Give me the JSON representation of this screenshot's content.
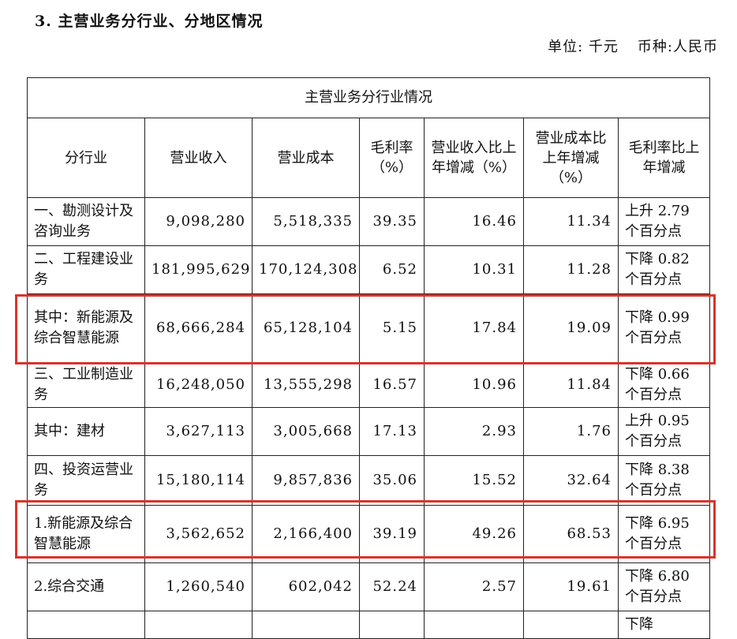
{
  "section_title": "3. 主营业务分行业、分地区情况",
  "unit": {
    "unit_label": "单位: 千元",
    "currency_label": "币种:人民币"
  },
  "table": {
    "caption": "主营业务分行业情况",
    "headers": [
      "分行业",
      "营业收入",
      "营业成本",
      "毛利率（%）",
      "营业收入比上年增减（%）",
      "营业成本比上年增减（%）",
      "毛利率比上年增减"
    ],
    "rows": [
      [
        "一、勘测设计及咨询业务",
        "9,098,280",
        "5,518,335",
        "39.35",
        "16.46",
        "11.34",
        "上升 2.79 个百分点"
      ],
      [
        "二、工程建设业务",
        "181,995,629",
        "170,124,308",
        "6.52",
        "10.31",
        "11.28",
        "下降 0.82 个百分点"
      ],
      [
        "其中：新能源及综合智慧能源",
        "68,666,284",
        "65,128,104",
        "5.15",
        "17.84",
        "19.09",
        "下降 0.99 个百分点"
      ],
      [
        "三、工业制造业务",
        "16,248,050",
        "13,555,298",
        "16.57",
        "10.96",
        "11.84",
        "下降 0.66 个百分点"
      ],
      [
        "其中：建材",
        "3,627,113",
        "3,005,668",
        "17.13",
        "2.93",
        "1.76",
        "上升 0.95 个百分点"
      ],
      [
        "四、投资运营业务",
        "15,180,114",
        "9,857,836",
        "35.06",
        "15.52",
        "32.64",
        "下降 8.38 个百分点"
      ],
      [
        "1.新能源及综合智慧能源",
        "3,562,652",
        "2,166,400",
        "39.19",
        "49.26",
        "68.53",
        "下降 6.95 个百分点"
      ],
      [
        "2.综合交通",
        "1,260,540",
        "602,042",
        "52.24",
        "2.57",
        "19.61",
        "下降 6.80 个百分点"
      ],
      [
        "",
        "",
        "",
        "",
        "",
        "",
        "下降"
      ]
    ]
  },
  "highlight_color": "#d9342b"
}
